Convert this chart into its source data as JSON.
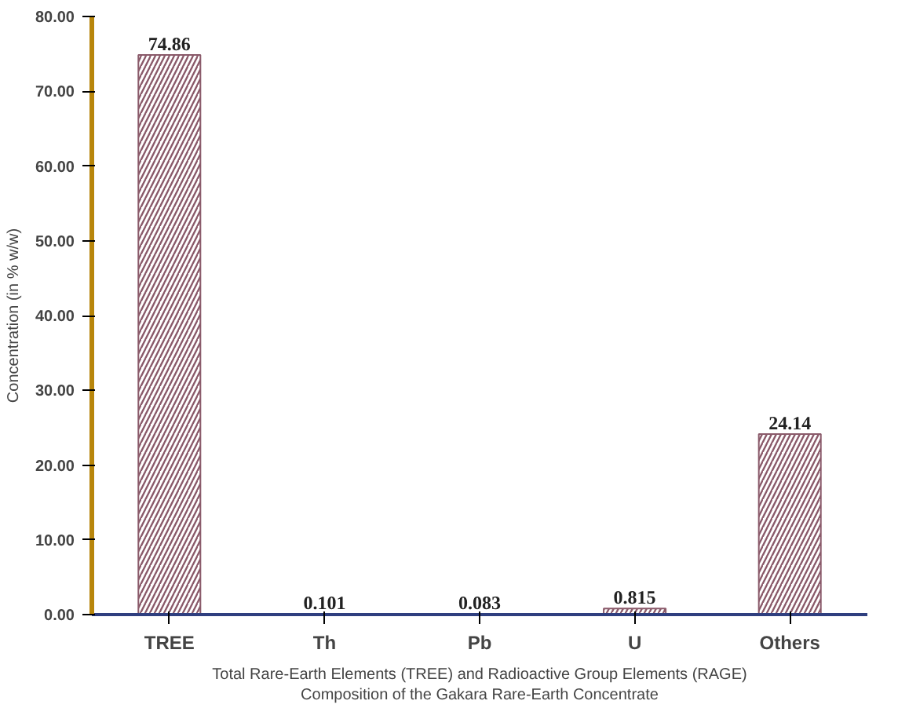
{
  "chart_data": {
    "type": "bar",
    "xlabel": "Total Rare-Earth Elements (TREE) and Radioactive Group Elements (RAGE) Composition of the Gakara Rare-Earth Concentrate",
    "ylabel": "Concentration (in % w/w)",
    "categories": [
      "TREE",
      "Th",
      "Pb",
      "U",
      "Others"
    ],
    "values": [
      74.86,
      0.101,
      0.083,
      0.815,
      24.14
    ],
    "value_labels": [
      "74.86",
      "0.101",
      "0.083",
      "0.815",
      "24.14"
    ],
    "color": "#8a5a6a",
    "ylim": [
      0,
      80
    ],
    "yticks": [
      {
        "value": 0,
        "label": "0.00"
      },
      {
        "value": 10,
        "label": "10.00"
      },
      {
        "value": 20,
        "label": "20.00"
      },
      {
        "value": 30,
        "label": "30.00"
      },
      {
        "value": 40,
        "label": "40.00"
      },
      {
        "value": 50,
        "label": "50.00"
      },
      {
        "value": 60,
        "label": "60.00"
      },
      {
        "value": 70,
        "label": "70.00"
      },
      {
        "value": 80,
        "label": "80.00"
      }
    ],
    "grid": false
  }
}
